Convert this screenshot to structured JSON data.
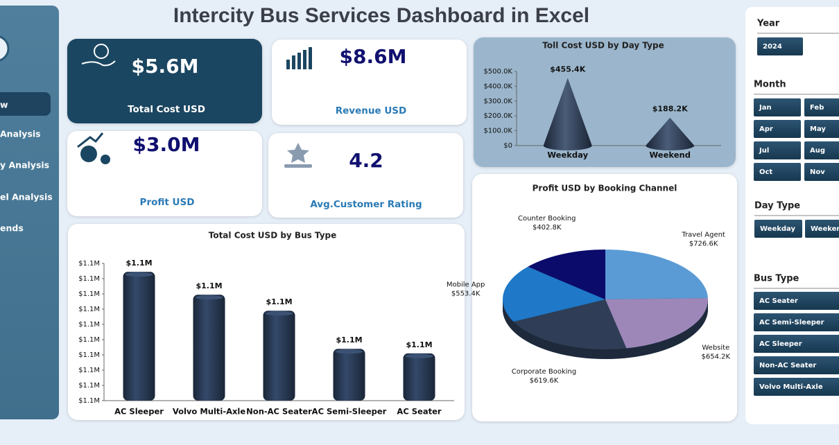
{
  "title": "Intercity Bus Services Dashboard in Excel",
  "nav": [
    "w",
    "Analysis",
    "y  Analysis",
    "el Analysis",
    "ends"
  ],
  "kpis": [
    {
      "value": "$5.6M",
      "label": "Total  Cost USD"
    },
    {
      "value": "$8.6M",
      "label": "Revenue USD"
    },
    {
      "value": "$3.0M",
      "label": "Profit USD"
    },
    {
      "value": 4.2,
      "label": "Avg.Customer Rating"
    }
  ],
  "chart_data": [
    {
      "type": "bar",
      "shape": "cone",
      "title": "Toll Cost USD by Day Type",
      "categories": [
        "Weekday",
        "Weekend"
      ],
      "values": [
        455400,
        188200
      ],
      "value_labels": [
        "$455.4K",
        "$188.2K"
      ],
      "color": "#2d3d55",
      "ylim": [
        0,
        500000
      ],
      "yticks": [
        {
          "value": 0,
          "label": "$0"
        },
        {
          "value": 100000,
          "label": "$100.0K"
        },
        {
          "value": 200000,
          "label": "$200.0K"
        },
        {
          "value": 300000,
          "label": "$300.0K"
        },
        {
          "value": 400000,
          "label": "$400.0K"
        },
        {
          "value": 500000,
          "label": "$500.0K"
        }
      ]
    },
    {
      "type": "pie",
      "title": "Profit USD by Booking Channel",
      "categories": [
        "Travel Agent",
        "Website",
        "Corporate Booking",
        "Mobile App",
        "Counter Booking"
      ],
      "values": [
        726600,
        654200,
        619600,
        553400,
        402800
      ],
      "value_labels": [
        "$726.6K",
        "$654.2K",
        "$619.6K",
        "$553.4K",
        "$402.8K"
      ],
      "colors": [
        "#5b9bd5",
        "#9d87b9",
        "#2f3e56",
        "#1f78c8",
        "#0b0b6b"
      ]
    },
    {
      "type": "bar",
      "shape": "cylinder",
      "title": "Total Cost USD by Bus Type",
      "categories": [
        "AC Sleeper",
        "Volvo Multi-Axle",
        "Non-AC Seater",
        "AC Semi-Sleeper",
        "AC Seater"
      ],
      "values": [
        1112900,
        1109900,
        1107800,
        1102800,
        1102200
      ],
      "value_labels": [
        "$1.1M",
        "$1.1M",
        "$1.1M",
        "$1.1M",
        "$1.1M"
      ],
      "color": "#253550",
      "ylim": [
        1096000,
        1114000
      ],
      "yticks": [
        {
          "value": 1096000,
          "label": "$1.1M"
        },
        {
          "value": 1098000,
          "label": "$1.1M"
        },
        {
          "value": 1100000,
          "label": "$1.1M"
        },
        {
          "value": 1102000,
          "label": "$1.1M"
        },
        {
          "value": 1104000,
          "label": "$1.1M"
        },
        {
          "value": 1106000,
          "label": "$1.1M"
        },
        {
          "value": 1108000,
          "label": "$1.1M"
        },
        {
          "value": 1110000,
          "label": "$1.1M"
        },
        {
          "value": 1112000,
          "label": "$1.1M"
        },
        {
          "value": 1114000,
          "label": "$1.1M"
        }
      ]
    }
  ],
  "slicers": [
    {
      "title": "Year",
      "items": [
        "2024"
      ]
    },
    {
      "title": "Month",
      "items": [
        "Jan",
        "Feb",
        "Apr",
        "May",
        "Jul",
        "Aug",
        "Oct",
        "Nov"
      ]
    },
    {
      "title": "Day Type",
      "items": [
        "Weekday",
        "Weekend"
      ]
    },
    {
      "title": "Bus Type",
      "items": [
        "AC Seater",
        "AC Semi-Sleeper",
        "AC Sleeper",
        "Non-AC Seater",
        "Volvo Multi-Axle"
      ]
    }
  ]
}
